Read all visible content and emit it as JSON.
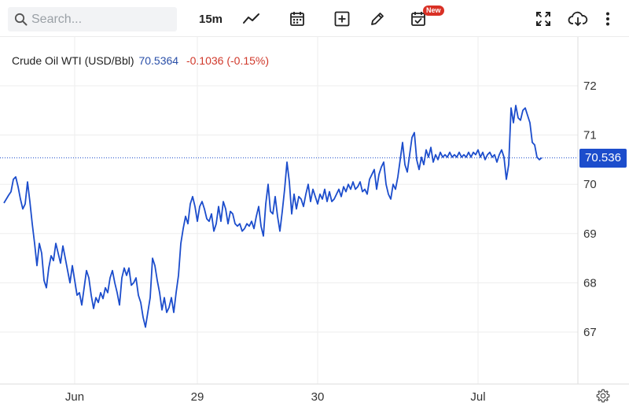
{
  "toolbar": {
    "search_placeholder": "Search...",
    "interval_label": "15m",
    "new_badge": "New"
  },
  "legend": {
    "symbol": "Crude Oil WTI (USD/Bbl)",
    "price": "70.5364",
    "change": "-0.1036 (-0.15%)"
  },
  "colors": {
    "line": "#1c4dcc",
    "price_tag_bg": "#1c4dcc",
    "change_negative": "#d0392b",
    "grid": "#ededed"
  },
  "chart_data": {
    "type": "line",
    "ylim": [
      66.0,
      72.6
    ],
    "y_ticks": [
      "72",
      "71",
      "70",
      "69",
      "68",
      "67"
    ],
    "x_ticks": [
      "Jun",
      "29",
      "30",
      "Jul"
    ],
    "x_tick_index": [
      30,
      82,
      133,
      201
    ],
    "last_price_label": "70.536",
    "last_price": 70.536,
    "grid": true,
    "series": [
      {
        "values": [
          69.62,
          69.7,
          69.78,
          69.85,
          70.1,
          70.15,
          69.95,
          69.7,
          69.5,
          69.6,
          70.05,
          69.65,
          69.2,
          68.8,
          68.35,
          68.8,
          68.6,
          68.05,
          67.9,
          68.3,
          68.55,
          68.45,
          68.8,
          68.6,
          68.4,
          68.75,
          68.5,
          68.25,
          68.0,
          68.35,
          68.05,
          67.75,
          67.8,
          67.55,
          67.9,
          68.25,
          68.1,
          67.75,
          67.48,
          67.7,
          67.6,
          67.8,
          67.68,
          67.9,
          67.8,
          68.1,
          68.25,
          68.0,
          67.8,
          67.55,
          68.1,
          68.3,
          68.15,
          68.3,
          67.95,
          68.0,
          68.1,
          67.75,
          67.6,
          67.3,
          67.1,
          67.4,
          67.7,
          68.5,
          68.35,
          68.05,
          67.8,
          67.45,
          67.7,
          67.4,
          67.5,
          67.7,
          67.4,
          67.8,
          68.15,
          68.8,
          69.1,
          69.35,
          69.2,
          69.6,
          69.75,
          69.55,
          69.25,
          69.55,
          69.65,
          69.5,
          69.3,
          69.25,
          69.4,
          69.05,
          69.2,
          69.55,
          69.25,
          69.65,
          69.5,
          69.2,
          69.45,
          69.4,
          69.2,
          69.15,
          69.2,
          69.05,
          69.1,
          69.2,
          69.15,
          69.25,
          69.1,
          69.35,
          69.55,
          69.15,
          68.95,
          69.6,
          70.0,
          69.45,
          69.4,
          69.75,
          69.35,
          69.05,
          69.45,
          69.9,
          70.45,
          70.05,
          69.4,
          69.8,
          69.5,
          69.75,
          69.7,
          69.55,
          69.8,
          70.0,
          69.65,
          69.9,
          69.75,
          69.6,
          69.8,
          69.7,
          69.9,
          69.65,
          69.85,
          69.65,
          69.7,
          69.8,
          69.9,
          69.75,
          69.95,
          69.85,
          70.0,
          69.9,
          70.05,
          69.9,
          69.95,
          70.05,
          69.85,
          69.9,
          69.8,
          70.1,
          70.2,
          70.3,
          69.9,
          70.2,
          70.35,
          70.45,
          70.0,
          69.8,
          69.7,
          70.0,
          69.9,
          70.15,
          70.5,
          70.85,
          70.4,
          70.25,
          70.6,
          70.95,
          71.05,
          70.5,
          70.3,
          70.55,
          70.4,
          70.7,
          70.55,
          70.75,
          70.45,
          70.6,
          70.5,
          70.65,
          70.55,
          70.6,
          70.55,
          70.65,
          70.55,
          70.6,
          70.55,
          70.65,
          70.55,
          70.6,
          70.55,
          70.65,
          70.55,
          70.65,
          70.6,
          70.7,
          70.55,
          70.65,
          70.5,
          70.6,
          70.65,
          70.55,
          70.6,
          70.45,
          70.6,
          70.7,
          70.55,
          70.1,
          70.4,
          71.55,
          71.25,
          71.6,
          71.35,
          71.3,
          71.5,
          71.55,
          71.4,
          71.25,
          70.85,
          70.8,
          70.55,
          70.5,
          70.54
        ]
      }
    ]
  }
}
